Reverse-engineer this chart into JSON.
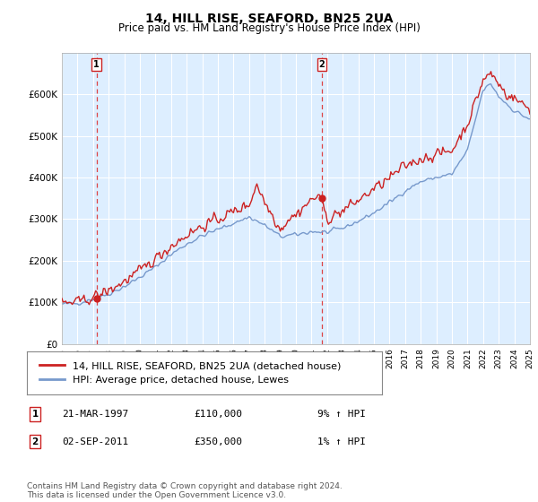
{
  "title": "14, HILL RISE, SEAFORD, BN25 2UA",
  "subtitle": "Price paid vs. HM Land Registry's House Price Index (HPI)",
  "ylim": [
    0,
    700000
  ],
  "yticks": [
    0,
    100000,
    200000,
    300000,
    400000,
    500000,
    600000
  ],
  "ytick_labels": [
    "£0",
    "£100K",
    "£200K",
    "£300K",
    "£400K",
    "£500K",
    "£600K"
  ],
  "bg_color": "#ffffff",
  "plot_bg_color": "#ddeeff",
  "grid_color": "#ffffff",
  "hpi_color": "#7799cc",
  "price_color": "#cc2222",
  "marker_color": "#cc2222",
  "vline_color": "#dd4444",
  "transaction1": {
    "date_num": 1997.22,
    "price": 110000,
    "label": "1",
    "text": "21-MAR-1997",
    "price_str": "£110,000",
    "hpi_str": "9% ↑ HPI"
  },
  "transaction2": {
    "date_num": 2011.67,
    "price": 350000,
    "label": "2",
    "text": "02-SEP-2011",
    "price_str": "£350,000",
    "hpi_str": "1% ↑ HPI"
  },
  "legend_line1": "14, HILL RISE, SEAFORD, BN25 2UA (detached house)",
  "legend_line2": "HPI: Average price, detached house, Lewes",
  "footer": "Contains HM Land Registry data © Crown copyright and database right 2024.\nThis data is licensed under the Open Government Licence v3.0.",
  "title_fontsize": 10,
  "subtitle_fontsize": 8.5,
  "tick_fontsize": 7.5,
  "legend_fontsize": 8,
  "footer_fontsize": 6.5
}
